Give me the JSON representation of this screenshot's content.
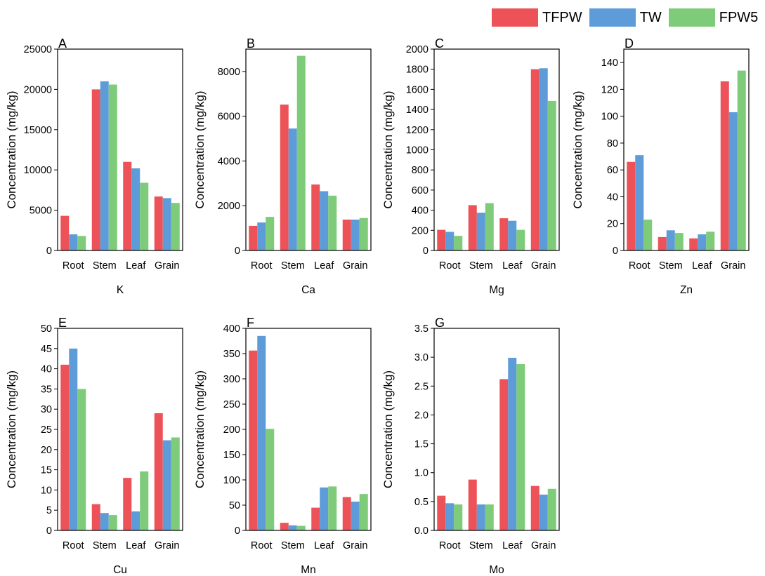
{
  "legend": [
    {
      "name": "TFPW",
      "color": "#ec5257"
    },
    {
      "name": "TW",
      "color": "#5d9cd8"
    },
    {
      "name": "FPW5",
      "color": "#7ecb7a"
    }
  ],
  "chart_data": [
    {
      "type": "bar",
      "panel": "A",
      "xlabel": "K",
      "ylabel": "Concentration (mg/kg)",
      "categories": [
        "Root",
        "Stem",
        "Leaf",
        "Grain"
      ],
      "ylim": [
        0,
        25000
      ],
      "yticks": [
        0,
        5000,
        10000,
        15000,
        20000,
        25000
      ],
      "series": [
        {
          "name": "TFPW",
          "values": [
            4300,
            20000,
            11000,
            6700
          ]
        },
        {
          "name": "TW",
          "values": [
            2000,
            21000,
            10200,
            6500
          ]
        },
        {
          "name": "FPW5",
          "values": [
            1800,
            20600,
            8400,
            5900
          ]
        }
      ]
    },
    {
      "type": "bar",
      "panel": "B",
      "xlabel": "Ca",
      "ylabel": "Concentration (mg/kg)",
      "categories": [
        "Root",
        "Stem",
        "Leaf",
        "Grain"
      ],
      "ylim": [
        0,
        9000
      ],
      "yticks": [
        0,
        2000,
        4000,
        6000,
        8000
      ],
      "series": [
        {
          "name": "TFPW",
          "values": [
            1100,
            6520,
            2950,
            1380
          ]
        },
        {
          "name": "TW",
          "values": [
            1250,
            5450,
            2650,
            1380
          ]
        },
        {
          "name": "FPW5",
          "values": [
            1500,
            8700,
            2450,
            1450
          ]
        }
      ]
    },
    {
      "type": "bar",
      "panel": "C",
      "xlabel": "Mg",
      "ylabel": "Concentration (mg/kg)",
      "categories": [
        "Root",
        "Stem",
        "Leaf",
        "Grain"
      ],
      "ylim": [
        0,
        2000
      ],
      "yticks": [
        0,
        200,
        400,
        600,
        800,
        1000,
        1200,
        1400,
        1600,
        1800,
        2000
      ],
      "series": [
        {
          "name": "TFPW",
          "values": [
            205,
            450,
            320,
            1800
          ]
        },
        {
          "name": "TW",
          "values": [
            185,
            375,
            295,
            1810
          ]
        },
        {
          "name": "FPW5",
          "values": [
            145,
            470,
            205,
            1485
          ]
        }
      ]
    },
    {
      "type": "bar",
      "panel": "D",
      "xlabel": "Zn",
      "ylabel": "Concentration (mg/kg)",
      "categories": [
        "Root",
        "Stem",
        "Leaf",
        "Grain"
      ],
      "ylim": [
        0,
        150
      ],
      "yticks": [
        0,
        20,
        40,
        60,
        80,
        100,
        120,
        140
      ],
      "series": [
        {
          "name": "TFPW",
          "values": [
            66,
            10,
            9,
            126
          ]
        },
        {
          "name": "TW",
          "values": [
            71,
            15,
            12,
            103
          ]
        },
        {
          "name": "FPW5",
          "values": [
            23,
            13,
            14,
            134
          ]
        }
      ]
    },
    {
      "type": "bar",
      "panel": "E",
      "xlabel": "Cu",
      "ylabel": "Concentration (mg/kg)",
      "categories": [
        "Root",
        "Stem",
        "Leaf",
        "Grain"
      ],
      "ylim": [
        0,
        50
      ],
      "yticks": [
        0,
        5,
        10,
        15,
        20,
        25,
        30,
        35,
        40,
        45,
        50
      ],
      "series": [
        {
          "name": "TFPW",
          "values": [
            41,
            6.5,
            13,
            29
          ]
        },
        {
          "name": "TW",
          "values": [
            45,
            4.3,
            4.7,
            22.3
          ]
        },
        {
          "name": "FPW5",
          "values": [
            35,
            3.8,
            14.6,
            23
          ]
        }
      ]
    },
    {
      "type": "bar",
      "panel": "F",
      "xlabel": "Mn",
      "ylabel": "Concentration (mg/kg)",
      "categories": [
        "Root",
        "Stem",
        "Leaf",
        "Grain"
      ],
      "ylim": [
        0,
        400
      ],
      "yticks": [
        0,
        50,
        100,
        150,
        200,
        250,
        300,
        350,
        400
      ],
      "series": [
        {
          "name": "TFPW",
          "values": [
            356,
            15,
            45,
            66
          ]
        },
        {
          "name": "TW",
          "values": [
            385,
            10,
            85,
            57
          ]
        },
        {
          "name": "FPW5",
          "values": [
            201,
            9,
            87,
            72
          ]
        }
      ]
    },
    {
      "type": "bar",
      "panel": "G",
      "xlabel": "Mo",
      "ylabel": "Concentration (mg/kg)",
      "categories": [
        "Root",
        "Stem",
        "Leaf",
        "Grain"
      ],
      "ylim": [
        0,
        3.5
      ],
      "yticks": [
        0.0,
        0.5,
        1.0,
        1.5,
        2.0,
        2.5,
        3.0,
        3.5
      ],
      "ytick_labels": [
        "0.0",
        "0.5",
        "1.0",
        "1.5",
        "2.0",
        "2.5",
        "3.0",
        "3.5"
      ],
      "series": [
        {
          "name": "TFPW",
          "values": [
            0.6,
            0.88,
            2.62,
            0.77
          ]
        },
        {
          "name": "TW",
          "values": [
            0.47,
            0.45,
            2.99,
            0.62
          ]
        },
        {
          "name": "FPW5",
          "values": [
            0.45,
            0.45,
            2.88,
            0.72
          ]
        }
      ]
    }
  ]
}
